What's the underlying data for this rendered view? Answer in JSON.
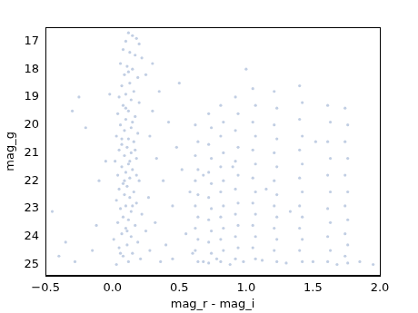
{
  "chart_data": {
    "type": "scatter",
    "x_label": "mag_r - mag_i",
    "y_label": "mag_g",
    "color": "#4c72b0",
    "marker": "circle",
    "grid": false,
    "xlim": [
      -0.5,
      2.0
    ],
    "xticks": [
      {
        "value": -0.5,
        "label": "−0.5"
      },
      {
        "value": 0.0,
        "label": "0.0"
      },
      {
        "value": 0.5,
        "label": "0.5"
      },
      {
        "value": 1.0,
        "label": "1.0"
      },
      {
        "value": 1.5,
        "label": "1.5"
      },
      {
        "value": 2.0,
        "label": "2.0"
      }
    ],
    "ylim": [
      25.4,
      16.5
    ],
    "yticks": [
      17,
      18,
      19,
      20,
      21,
      22,
      23,
      24,
      25
    ],
    "x": [
      0.12,
      0.15,
      0.18,
      0.1,
      0.2,
      0.08,
      0.13,
      0.17,
      0.22,
      0.06,
      0.11,
      0.15,
      0.09,
      0.19,
      0.13,
      0.07,
      0.16,
      0.1,
      0.05,
      0.14,
      0.2,
      0.08,
      0.12,
      0.04,
      0.17,
      0.1,
      0.06,
      0.14,
      0.09,
      0.19,
      0.03,
      0.12,
      0.16,
      0.07,
      0.11,
      0.05,
      0.14,
      0.09,
      0.18,
      0.02,
      0.12,
      0.07,
      0.15,
      0.1,
      0.04,
      0.13,
      0.2,
      0.08,
      0.11,
      0.05,
      0.16,
      0.09,
      0.13,
      0.03,
      0.18,
      0.1,
      0.06,
      0.14,
      0.22,
      0.08,
      0.12,
      0.04,
      0.17,
      0.1,
      0.25,
      0.07,
      0.14,
      0.01,
      0.19,
      0.11,
      0.05,
      0.28,
      0.15,
      0.08,
      0.21,
      0.12,
      0.03,
      0.1,
      0.15,
      0.07,
      0.13,
      0.09,
      0.15,
      0.11,
      0.06,
      0.17,
      0.12,
      0.18,
      0.25,
      0.3,
      0.35,
      0.28,
      0.42,
      0.33,
      0.48,
      0.38,
      0.27,
      0.45,
      0.52,
      0.32,
      0.55,
      0.4,
      0.5,
      0.58,
      0.3,
      0.45,
      0.6,
      0.36,
      -0.45,
      -0.3,
      -0.25,
      -0.2,
      -0.1,
      -0.15,
      -0.05,
      -0.35,
      -0.28,
      -0.02,
      -0.12,
      -0.4,
      0.68,
      0.78,
      0.88,
      0.98,
      1.12,
      1.3,
      1.5,
      1.68,
      1.85,
      1.95,
      0.9,
      1.15,
      1.33,
      1.52,
      0.68,
      1.0,
      0.62,
      0.64,
      0.62,
      0.64,
      0.62,
      0.64,
      0.62,
      0.64,
      0.62,
      0.64,
      0.62,
      0.64,
      0.72,
      0.74,
      0.72,
      0.74,
      0.72,
      0.74,
      0.72,
      0.74,
      0.72,
      0.74,
      0.72,
      0.74,
      0.72,
      0.81,
      0.83,
      0.81,
      0.83,
      0.81,
      0.83,
      0.81,
      0.83,
      0.81,
      0.83,
      0.81,
      0.83,
      0.81,
      0.92,
      0.94,
      0.92,
      0.94,
      0.92,
      0.94,
      0.92,
      0.94,
      0.92,
      0.94,
      0.92,
      0.94,
      0.92,
      1.05,
      1.07,
      1.05,
      1.07,
      1.05,
      1.07,
      1.05,
      1.07,
      1.05,
      1.07,
      1.05,
      1.07,
      1.05,
      1.07,
      1.21,
      1.23,
      1.21,
      1.23,
      1.21,
      1.23,
      1.21,
      1.23,
      1.21,
      1.23,
      1.21,
      1.23,
      1.21,
      1.23,
      1.4,
      1.42,
      1.4,
      1.42,
      1.4,
      1.42,
      1.4,
      1.42,
      1.4,
      1.42,
      1.4,
      1.42,
      1.4,
      1.42,
      1.61,
      1.63,
      1.61,
      1.63,
      1.61,
      1.63,
      1.61,
      1.63,
      1.61,
      1.63,
      1.61,
      1.74,
      1.76,
      1.74,
      1.76,
      1.74,
      1.76,
      1.74,
      1.76,
      1.74,
      1.76,
      1.74,
      1.76
    ],
    "values": [
      16.7,
      16.8,
      16.9,
      17.0,
      17.1,
      17.3,
      17.4,
      17.5,
      17.6,
      17.8,
      17.9,
      18.0,
      18.2,
      18.3,
      18.5,
      18.6,
      18.8,
      18.9,
      19.0,
      19.1,
      19.2,
      19.3,
      19.5,
      19.6,
      19.7,
      19.8,
      20.0,
      20.1,
      20.2,
      20.3,
      20.4,
      20.5,
      20.6,
      20.7,
      20.8,
      20.9,
      21.0,
      21.1,
      21.2,
      21.3,
      21.4,
      21.5,
      21.6,
      21.7,
      21.8,
      21.9,
      22.0,
      22.1,
      22.2,
      22.3,
      22.4,
      22.5,
      22.6,
      22.7,
      22.8,
      22.9,
      23.0,
      23.1,
      23.2,
      23.3,
      23.4,
      23.5,
      23.6,
      23.7,
      23.8,
      23.9,
      24.0,
      24.1,
      24.2,
      24.3,
      24.4,
      24.5,
      24.6,
      24.7,
      24.8,
      24.9,
      25.0,
      19.4,
      19.9,
      20.5,
      21.3,
      22.0,
      22.9,
      23.8,
      24.6,
      20.9,
      18.1,
      21.8,
      18.2,
      19.5,
      18.8,
      20.4,
      19.9,
      21.2,
      20.8,
      22.0,
      22.6,
      22.9,
      21.6,
      23.5,
      23.9,
      24.3,
      18.5,
      22.4,
      17.8,
      24.8,
      24.6,
      24.9,
      23.1,
      19.5,
      19.0,
      20.1,
      22.0,
      24.5,
      21.3,
      24.2,
      24.9,
      18.9,
      23.6,
      24.7,
      24.9,
      24.8,
      25.0,
      24.9,
      24.85,
      24.95,
      24.9,
      25.0,
      24.9,
      25.0,
      21.5,
      22.3,
      23.1,
      20.6,
      21.8,
      18.0,
      20.0,
      20.6,
      21.1,
      21.6,
      22.0,
      22.5,
      22.9,
      23.3,
      23.7,
      24.1,
      24.5,
      24.9,
      19.6,
      20.1,
      20.7,
      21.2,
      21.7,
      22.1,
      22.6,
      23.0,
      23.4,
      23.8,
      24.2,
      24.6,
      24.95,
      19.3,
      19.9,
      20.4,
      21.0,
      21.5,
      22.0,
      22.4,
      22.9,
      23.3,
      23.7,
      24.1,
      24.5,
      24.9,
      19.0,
      19.6,
      20.2,
      20.8,
      21.3,
      21.8,
      22.3,
      22.8,
      23.2,
      23.6,
      24.0,
      24.4,
      24.8,
      18.7,
      19.3,
      19.9,
      20.4,
      20.9,
      21.4,
      21.9,
      22.4,
      22.8,
      23.2,
      23.6,
      24.0,
      24.4,
      24.8,
      18.8,
      19.4,
      20.0,
      20.5,
      21.0,
      21.5,
      22.0,
      22.5,
      22.9,
      23.3,
      23.7,
      24.1,
      24.5,
      24.9,
      18.6,
      19.2,
      19.8,
      20.4,
      20.9,
      21.4,
      21.9,
      22.4,
      22.9,
      23.3,
      23.7,
      24.1,
      24.5,
      24.9,
      19.3,
      19.9,
      20.6,
      21.2,
      21.8,
      22.4,
      23.0,
      23.5,
      24.0,
      24.5,
      24.9,
      19.4,
      20.0,
      20.6,
      21.2,
      21.8,
      22.4,
      22.9,
      23.4,
      23.9,
      24.3,
      24.7,
      24.95
    ]
  }
}
